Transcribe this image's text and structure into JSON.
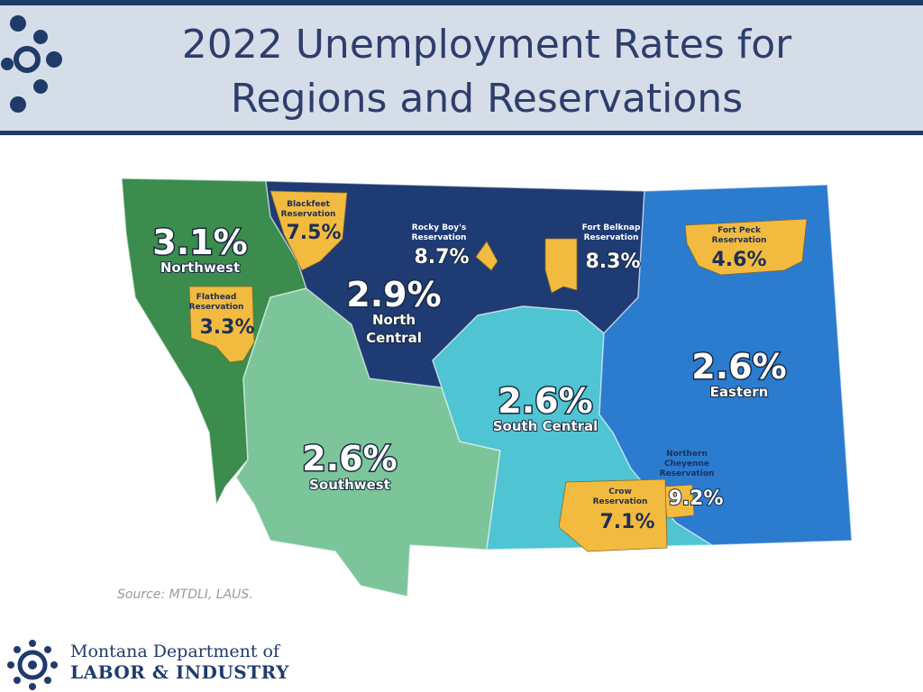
{
  "header": {
    "title": "2022 Unemployment Rates for Regions and Reservations"
  },
  "map": {
    "regions": [
      {
        "name_lines": [
          "Northwest"
        ],
        "rate": "3.1%"
      },
      {
        "name_lines": [
          "North",
          "Central"
        ],
        "rate": "2.9%"
      },
      {
        "name_lines": [
          "Eastern"
        ],
        "rate": "2.6%"
      },
      {
        "name_lines": [
          "South Central"
        ],
        "rate": "2.6%"
      },
      {
        "name_lines": [
          "Southwest"
        ],
        "rate": "2.6%"
      }
    ],
    "reservations": [
      {
        "name_lines": [
          "Blackfeet",
          "Reservation"
        ],
        "rate": "7.5%"
      },
      {
        "name_lines": [
          "Flathead",
          "Reservation"
        ],
        "rate": "3.3%"
      },
      {
        "name_lines": [
          "Rocky Boy's",
          "Reservation"
        ],
        "rate": "8.7%"
      },
      {
        "name_lines": [
          "Fort Belknap",
          "Reservation"
        ],
        "rate": "8.3%"
      },
      {
        "name_lines": [
          "Fort Peck",
          "Reservation"
        ],
        "rate": "4.6%"
      },
      {
        "name_lines": [
          "Northern",
          "Cheyenne",
          "Reservation"
        ],
        "rate": "9.2%"
      },
      {
        "name_lines": [
          "Crow",
          "Reservation"
        ],
        "rate": "7.1%"
      }
    ],
    "source": "Source: MTDLI, LAUS."
  },
  "footer": {
    "org_line1": "Montana Department of",
    "org_line2": "LABOR & INDUSTRY"
  }
}
